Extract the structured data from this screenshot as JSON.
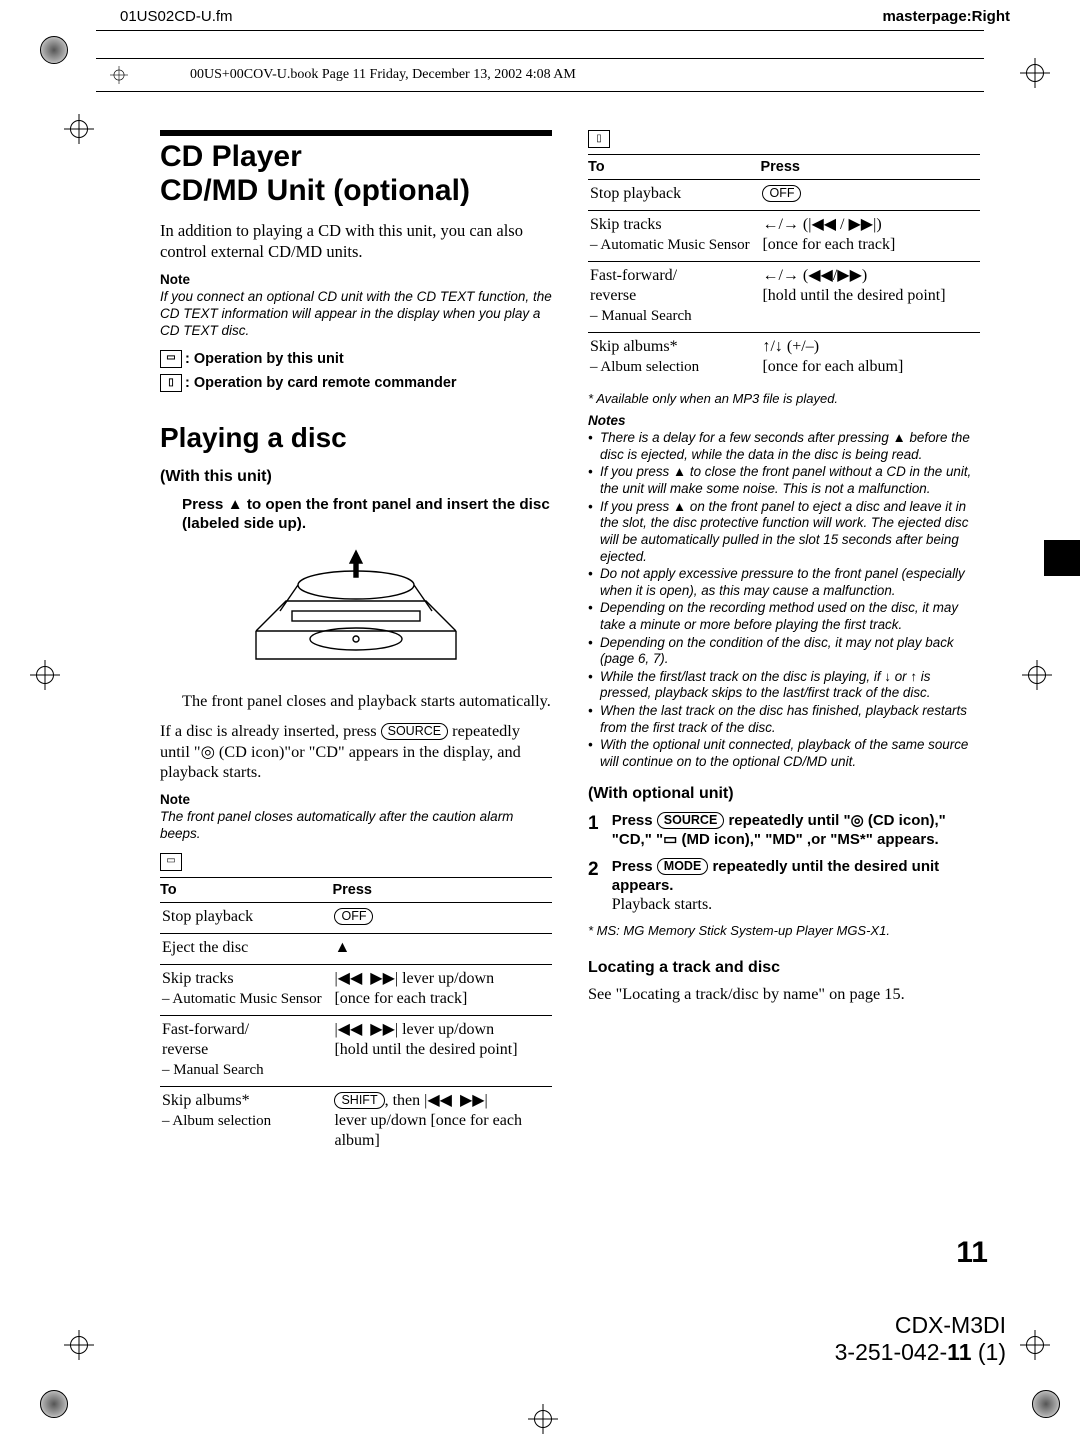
{
  "header": {
    "left": "01US02CD-U.fm",
    "right": "masterpage:Right"
  },
  "bookbar": "00US+00COV-U.book  Page 11  Friday, December 13, 2002  4:08 AM",
  "title_lines": [
    "CD Player",
    "CD/MD Unit (optional)"
  ],
  "intro": "In addition to playing a CD with this unit, you can also control external CD/MD units.",
  "note1_hd": "Note",
  "note1": "If you connect an optional CD unit with the CD TEXT function, the CD TEXT information will appear in the display when you play a CD TEXT disc.",
  "legend1": ": Operation by this unit",
  "legend2": ": Operation by card remote commander",
  "sect1": "Playing a disc",
  "sub_unit": "(With this unit)",
  "step_press": "Press ▲ to open the front panel and insert the disc (labeled side up).",
  "after_insert": "The front panel closes and playback starts automatically.",
  "already": {
    "a": "If a disc is already inserted, press ",
    "b": " repeatedly until \"",
    "c": " (CD icon)\"or \"CD\" appears in the display, and playback starts."
  },
  "note2_hd": "Note",
  "note2": "The front panel closes automatically after the caution alarm beeps.",
  "tbl_hdr_to": "To",
  "tbl_hdr_press": "Press",
  "unit_table": {
    "columns": [
      "To",
      "Press"
    ],
    "rows": [
      {
        "to": "Stop playback",
        "press_html": "<span class='key'>OFF</span>"
      },
      {
        "to": "Eject the disc",
        "press_html": "▲"
      },
      {
        "to": "Skip tracks<br><span class='sub'>– Automatic Music Sensor</span>",
        "press_html": "|◀◀&nbsp; ▶▶| lever up/down<br>[once for each track]"
      },
      {
        "to": "Fast-forward/<br>reverse<br><span class='sub'>– Manual Search</span>",
        "press_html": "|◀◀&nbsp; ▶▶| lever up/down<br>[hold until the desired point]"
      },
      {
        "to": "Skip albums*<br><span class='sub'>– Album selection</span>",
        "press_html": "<span class='key'>SHIFT</span>, then |◀◀&nbsp; ▶▶|<br>lever up/down [once for each album]"
      }
    ]
  },
  "remote_table": {
    "columns": [
      "To",
      "Press"
    ],
    "rows": [
      {
        "to": "Stop playback",
        "press_html": "<span class='key'>OFF</span>"
      },
      {
        "to": "Skip tracks<br><span class='sub'>– Automatic Music Sensor</span>",
        "press_html": "←/→ (|◀◀ / ▶▶|)<br>[once for each track]"
      },
      {
        "to": "Fast-forward/<br>reverse<br><span class='sub'>– Manual Search</span>",
        "press_html": "←/→ (◀◀/▶▶)<br>[hold until the desired point]"
      },
      {
        "to": "Skip albums*<br><span class='sub'>– Album selection</span>",
        "press_html": "↑/↓ (+/–)<br>[once for each album]"
      }
    ]
  },
  "star1": "*  Available only when an MP3 file is played.",
  "notes_hd": "Notes",
  "notes": [
    "There is a delay for a few seconds after pressing ▲ before the disc is ejected, while the data in the disc is being read.",
    "If you press ▲ to close the front panel without a CD in the unit, the unit will make some noise. This is not a malfunction.",
    "If you press ▲ on the front panel to eject a disc and leave it in the slot, the disc protective function will work. The ejected disc will be automatically pulled in the slot 15 seconds after being ejected.",
    "Do not apply excessive pressure to the front panel (especially when it is open), as this may cause a malfunction.",
    "Depending on the recording method used on the disc, it may take a minute or more before playing the first track.",
    "Depending on the condition of the disc, it may not play back (page 6, 7).",
    "While the first/last track on the disc is playing, if ↓ or ↑ is pressed, playback skips to the last/first track of the disc.",
    "When the last track on the disc has finished, playback restarts from the first track of the disc.",
    "With the optional unit connected, playback of the same source will continue on to the optional CD/MD unit."
  ],
  "sub_opt": "(With optional unit)",
  "opt_step1": {
    "a": "Press ",
    "b": " repeatedly until \"",
    "c": " (CD icon),\" \"CD,\" \"",
    "d": " (MD icon),\" \"MD\" ,or \"MS*\" appears."
  },
  "opt_step2": {
    "a": "Press ",
    "b": " repeatedly until the desired unit appears.",
    "c": "Playback starts."
  },
  "star2": "*  MS: MG Memory Stick System-up Player MGS-X1.",
  "loc_head": "Locating a track and disc",
  "loc_txt": "See \"Locating a track/disc by name\" on page 15.",
  "page_num": "11",
  "footer_model": "CDX-M3DI",
  "footer_code_a": "3-251-042-",
  "footer_code_b": "11",
  "footer_code_c": " (1)",
  "keys": {
    "off": "OFF",
    "source": "SOURCE",
    "mode": "MODE",
    "shift": "SHIFT"
  }
}
